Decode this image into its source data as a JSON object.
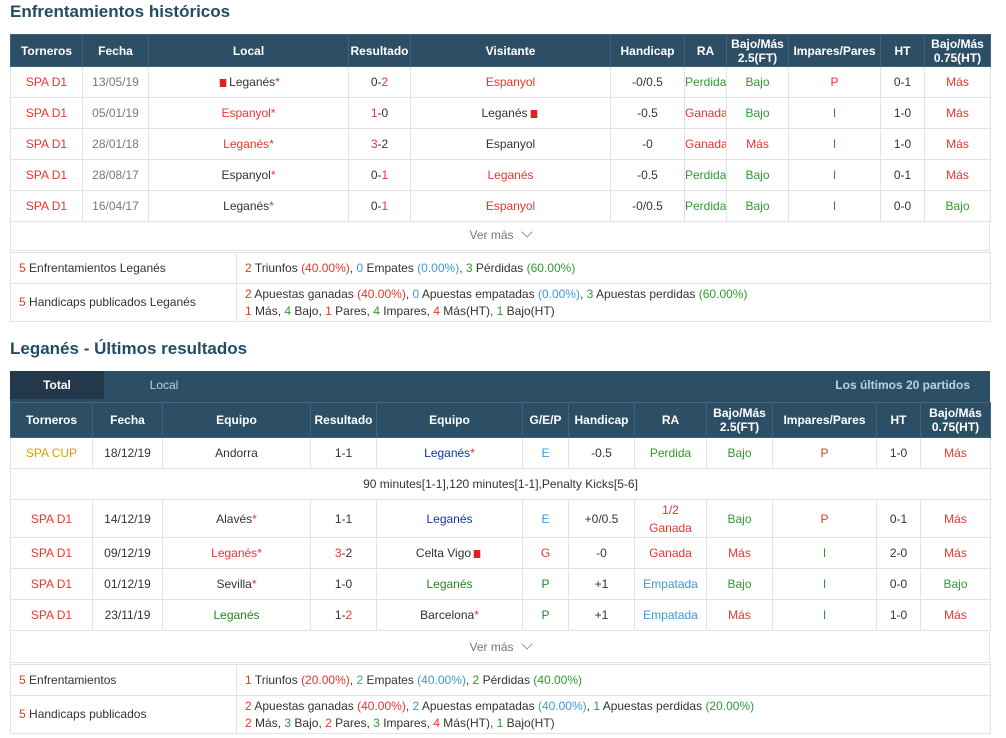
{
  "historic": {
    "title": "Enfrentamientos históricos",
    "headers": [
      "Torneros",
      "Fecha",
      "Local",
      "Resultado",
      "Visitante",
      "Handicap",
      "RA",
      "Bajo/Más 2.5(FT)",
      "Impares/Pares",
      "HT",
      "Bajo/Más 0.75(HT)"
    ],
    "rows": [
      {
        "league": "SPA D1",
        "date": "13/05/19",
        "home": "Leganés",
        "home_star": "*",
        "home_color": "dark",
        "home_flag": true,
        "score_home": "0",
        "score_away": "2",
        "score_home_color": "dark",
        "score_away_color": "red",
        "away": "Espanyol",
        "away_star": "",
        "away_color": "red",
        "away_flag": false,
        "handicap": "-0/0.5",
        "ra": "Perdida",
        "ra_color": "green",
        "ou": "Bajo",
        "ou_color": "green",
        "oe": "P",
        "oe_color": "red",
        "ht": "0-1",
        "ht_ou": "Más",
        "ht_ou_color": "red"
      },
      {
        "league": "SPA D1",
        "date": "05/01/19",
        "home": "Espanyol",
        "home_star": "*",
        "home_color": "red",
        "home_flag": false,
        "score_home": "1",
        "score_away": "0",
        "score_home_color": "red",
        "score_away_color": "dark",
        "away": "Leganés",
        "away_star": "",
        "away_color": "dark",
        "away_flag": true,
        "handicap": "-0.5",
        "ra": "Ganada",
        "ra_color": "red",
        "ou": "Bajo",
        "ou_color": "green",
        "oe": "I",
        "oe_color": "green",
        "ht": "1-0",
        "ht_ou": "Más",
        "ht_ou_color": "red"
      },
      {
        "league": "SPA D1",
        "date": "28/01/18",
        "home": "Leganés",
        "home_star": "*",
        "home_color": "red",
        "home_flag": false,
        "score_home": "3",
        "score_away": "2",
        "score_home_color": "red",
        "score_away_color": "dark",
        "away": "Espanyol",
        "away_star": "",
        "away_color": "dark",
        "away_flag": false,
        "handicap": "-0",
        "ra": "Ganada",
        "ra_color": "red",
        "ou": "Más",
        "ou_color": "red",
        "oe": "I",
        "oe_color": "green",
        "ht": "1-0",
        "ht_ou": "Más",
        "ht_ou_color": "red"
      },
      {
        "league": "SPA D1",
        "date": "28/08/17",
        "home": "Espanyol",
        "home_star": "*",
        "home_color": "dark",
        "home_flag": false,
        "score_home": "0",
        "score_away": "1",
        "score_home_color": "dark",
        "score_away_color": "red",
        "away": "Leganés",
        "away_star": "",
        "away_color": "red",
        "away_flag": false,
        "handicap": "-0.5",
        "ra": "Perdida",
        "ra_color": "green",
        "ou": "Bajo",
        "ou_color": "green",
        "oe": "I",
        "oe_color": "green",
        "ht": "0-1",
        "ht_ou": "Más",
        "ht_ou_color": "red"
      },
      {
        "league": "SPA D1",
        "date": "16/04/17",
        "home": "Leganés",
        "home_star": "*",
        "home_color": "dark",
        "home_flag": false,
        "score_home": "0",
        "score_away": "1",
        "score_home_color": "dark",
        "score_away_color": "red",
        "away": "Espanyol",
        "away_star": "",
        "away_color": "red",
        "away_flag": false,
        "handicap": "-0/0.5",
        "ra": "Perdida",
        "ra_color": "green",
        "ou": "Bajo",
        "ou_color": "green",
        "oe": "I",
        "oe_color": "green",
        "ht": "0-0",
        "ht_ou": "Bajo",
        "ht_ou_color": "green"
      }
    ],
    "more_label": "Ver más",
    "summary": {
      "matches_count": "5",
      "matches_label": "Enfrentamientos Leganés",
      "wins": "2",
      "wins_label": "Triunfos",
      "wins_pct": "(40.00%)",
      "draws": "0",
      "draws_label": "Empates",
      "draws_pct": "(0.00%)",
      "losses": "3",
      "losses_label": "Pérdidas",
      "losses_pct": "(60.00%)",
      "hcp_count": "5",
      "hcp_label": "Handicaps publicados Leganés",
      "won": "2",
      "won_label": "Apuestas ganadas",
      "won_pct": "(40.00%)",
      "tied": "0",
      "tied_label": "Apuestas empatadas",
      "tied_pct": "(0.00%)",
      "lost": "3",
      "lost_label": "Apuestas perdidas",
      "lost_pct": "(60.00%)",
      "mas": "1",
      "mas_label": "Más,",
      "bajo": "4",
      "bajo_label": "Bajo,",
      "pares": "1",
      "pares_label": "Pares,",
      "impares": "4",
      "impares_label": "Impares,",
      "masht": "4",
      "masht_label": "Más(HT),",
      "bajoht": "1",
      "bajoht_label": "Bajo(HT)"
    }
  },
  "latest": {
    "title": "Leganés - Últimos resultados",
    "tab_total": "Total",
    "tab_local": "Local",
    "last_n": "Los últimos 20 partidos",
    "headers": [
      "Torneros",
      "Fecha",
      "Equipo",
      "Resultado",
      "Equipo",
      "G/E/P",
      "Handicap",
      "RA",
      "Bajo/Más 2.5(FT)",
      "Impares/Pares",
      "HT",
      "Bajo/Más 0.75(HT)"
    ],
    "rows": [
      {
        "league": "SPA CUP",
        "league_color": "orange",
        "date": "18/12/19",
        "home": "Andorra",
        "home_star": "",
        "home_color": "dark",
        "home_flag": false,
        "score_home": "1",
        "score_away": "1",
        "score_home_color": "dark",
        "score_away_color": "dark",
        "away": "Leganés",
        "away_star": "*",
        "away_color": "navy",
        "away_flag": false,
        "gep": "E",
        "gep_color": "blue",
        "handicap": "-0.5",
        "ra": "Perdida",
        "ra2": "",
        "ra_color": "green",
        "ou": "Bajo",
        "ou_color": "green",
        "oe": "P",
        "oe_color": "red",
        "ht": "1-0",
        "ht_ou": "Más",
        "ht_ou_color": "red"
      },
      {
        "league": "SPA D1",
        "league_color": "red",
        "date": "14/12/19",
        "home": "Alavés",
        "home_star": "*",
        "home_color": "dark",
        "home_flag": false,
        "score_home": "1",
        "score_away": "1",
        "score_home_color": "dark",
        "score_away_color": "dark",
        "away": "Leganés",
        "away_star": "",
        "away_color": "navy",
        "away_flag": false,
        "gep": "E",
        "gep_color": "blue",
        "handicap": "+0/0.5",
        "ra": "1/2",
        "ra2": "Ganada",
        "ra_color": "red",
        "ou": "Bajo",
        "ou_color": "green",
        "oe": "P",
        "oe_color": "red",
        "ht": "0-1",
        "ht_ou": "Más",
        "ht_ou_color": "red"
      },
      {
        "league": "SPA D1",
        "league_color": "red",
        "date": "09/12/19",
        "home": "Leganés",
        "home_star": "*",
        "home_color": "red",
        "home_flag": false,
        "score_home": "3",
        "score_away": "2",
        "score_home_color": "red",
        "score_away_color": "dark",
        "away": "Celta Vigo",
        "away_star": "",
        "away_color": "dark",
        "away_flag": true,
        "gep": "G",
        "gep_color": "red",
        "handicap": "-0",
        "ra": "Ganada",
        "ra2": "",
        "ra_color": "red",
        "ou": "Más",
        "ou_color": "red",
        "oe": "I",
        "oe_color": "green",
        "ht": "2-0",
        "ht_ou": "Más",
        "ht_ou_color": "red"
      },
      {
        "league": "SPA D1",
        "league_color": "red",
        "date": "01/12/19",
        "home": "Sevilla",
        "home_star": "*",
        "home_color": "dark",
        "home_flag": false,
        "score_home": "1",
        "score_away": "0",
        "score_home_color": "dark",
        "score_away_color": "dark",
        "away": "Leganés",
        "away_star": "",
        "away_color": "dkgreen",
        "away_flag": false,
        "gep": "P",
        "gep_color": "dkgreen",
        "handicap": "+1",
        "ra": "Empatada",
        "ra2": "",
        "ra_color": "blue",
        "ou": "Bajo",
        "ou_color": "green",
        "oe": "I",
        "oe_color": "green",
        "ht": "0-0",
        "ht_ou": "Bajo",
        "ht_ou_color": "green"
      },
      {
        "league": "SPA D1",
        "league_color": "red",
        "date": "23/11/19",
        "home": "Leganés",
        "home_star": "",
        "home_color": "dkgreen",
        "home_flag": false,
        "score_home": "1",
        "score_away": "2",
        "score_home_color": "dark",
        "score_away_color": "red",
        "away": "Barcelona",
        "away_star": "*",
        "away_color": "dark",
        "away_flag": false,
        "gep": "P",
        "gep_color": "dkgreen",
        "handicap": "+1",
        "ra": "Empatada",
        "ra2": "",
        "ra_color": "blue",
        "ou": "Más",
        "ou_color": "red",
        "oe": "I",
        "oe_color": "green",
        "ht": "1-0",
        "ht_ou": "Más",
        "ht_ou_color": "red"
      }
    ],
    "note": "90 minutes[1-1],120 minutes[1-1],Penalty Kicks[5-6]",
    "more_label": "Ver más",
    "summary": {
      "matches_count": "5",
      "matches_label": "Enfrentamientos",
      "wins": "1",
      "wins_label": "Triunfos",
      "wins_pct": "(20.00%)",
      "draws": "2",
      "draws_label": "Empates",
      "draws_pct": "(40.00%)",
      "losses": "2",
      "losses_label": "Pérdidas",
      "losses_pct": "(40.00%)",
      "hcp_count": "5",
      "hcp_label": "Handicaps publicados",
      "won": "2",
      "won_label": "Apuestas ganadas",
      "won_pct": "(40.00%)",
      "tied": "2",
      "tied_label": "Apuestas empatadas",
      "tied_pct": "(40.00%)",
      "lost": "1",
      "lost_label": "Apuestas perdidas",
      "lost_pct": "(20.00%)",
      "mas": "2",
      "mas_label": "Más,",
      "bajo": "3",
      "bajo_label": "Bajo,",
      "pares": "2",
      "pares_label": "Pares,",
      "impares": "3",
      "impares_label": "Impares,",
      "masht": "4",
      "masht_label": "Más(HT),",
      "bajoht": "1",
      "bajoht_label": "Bajo(HT)"
    }
  }
}
